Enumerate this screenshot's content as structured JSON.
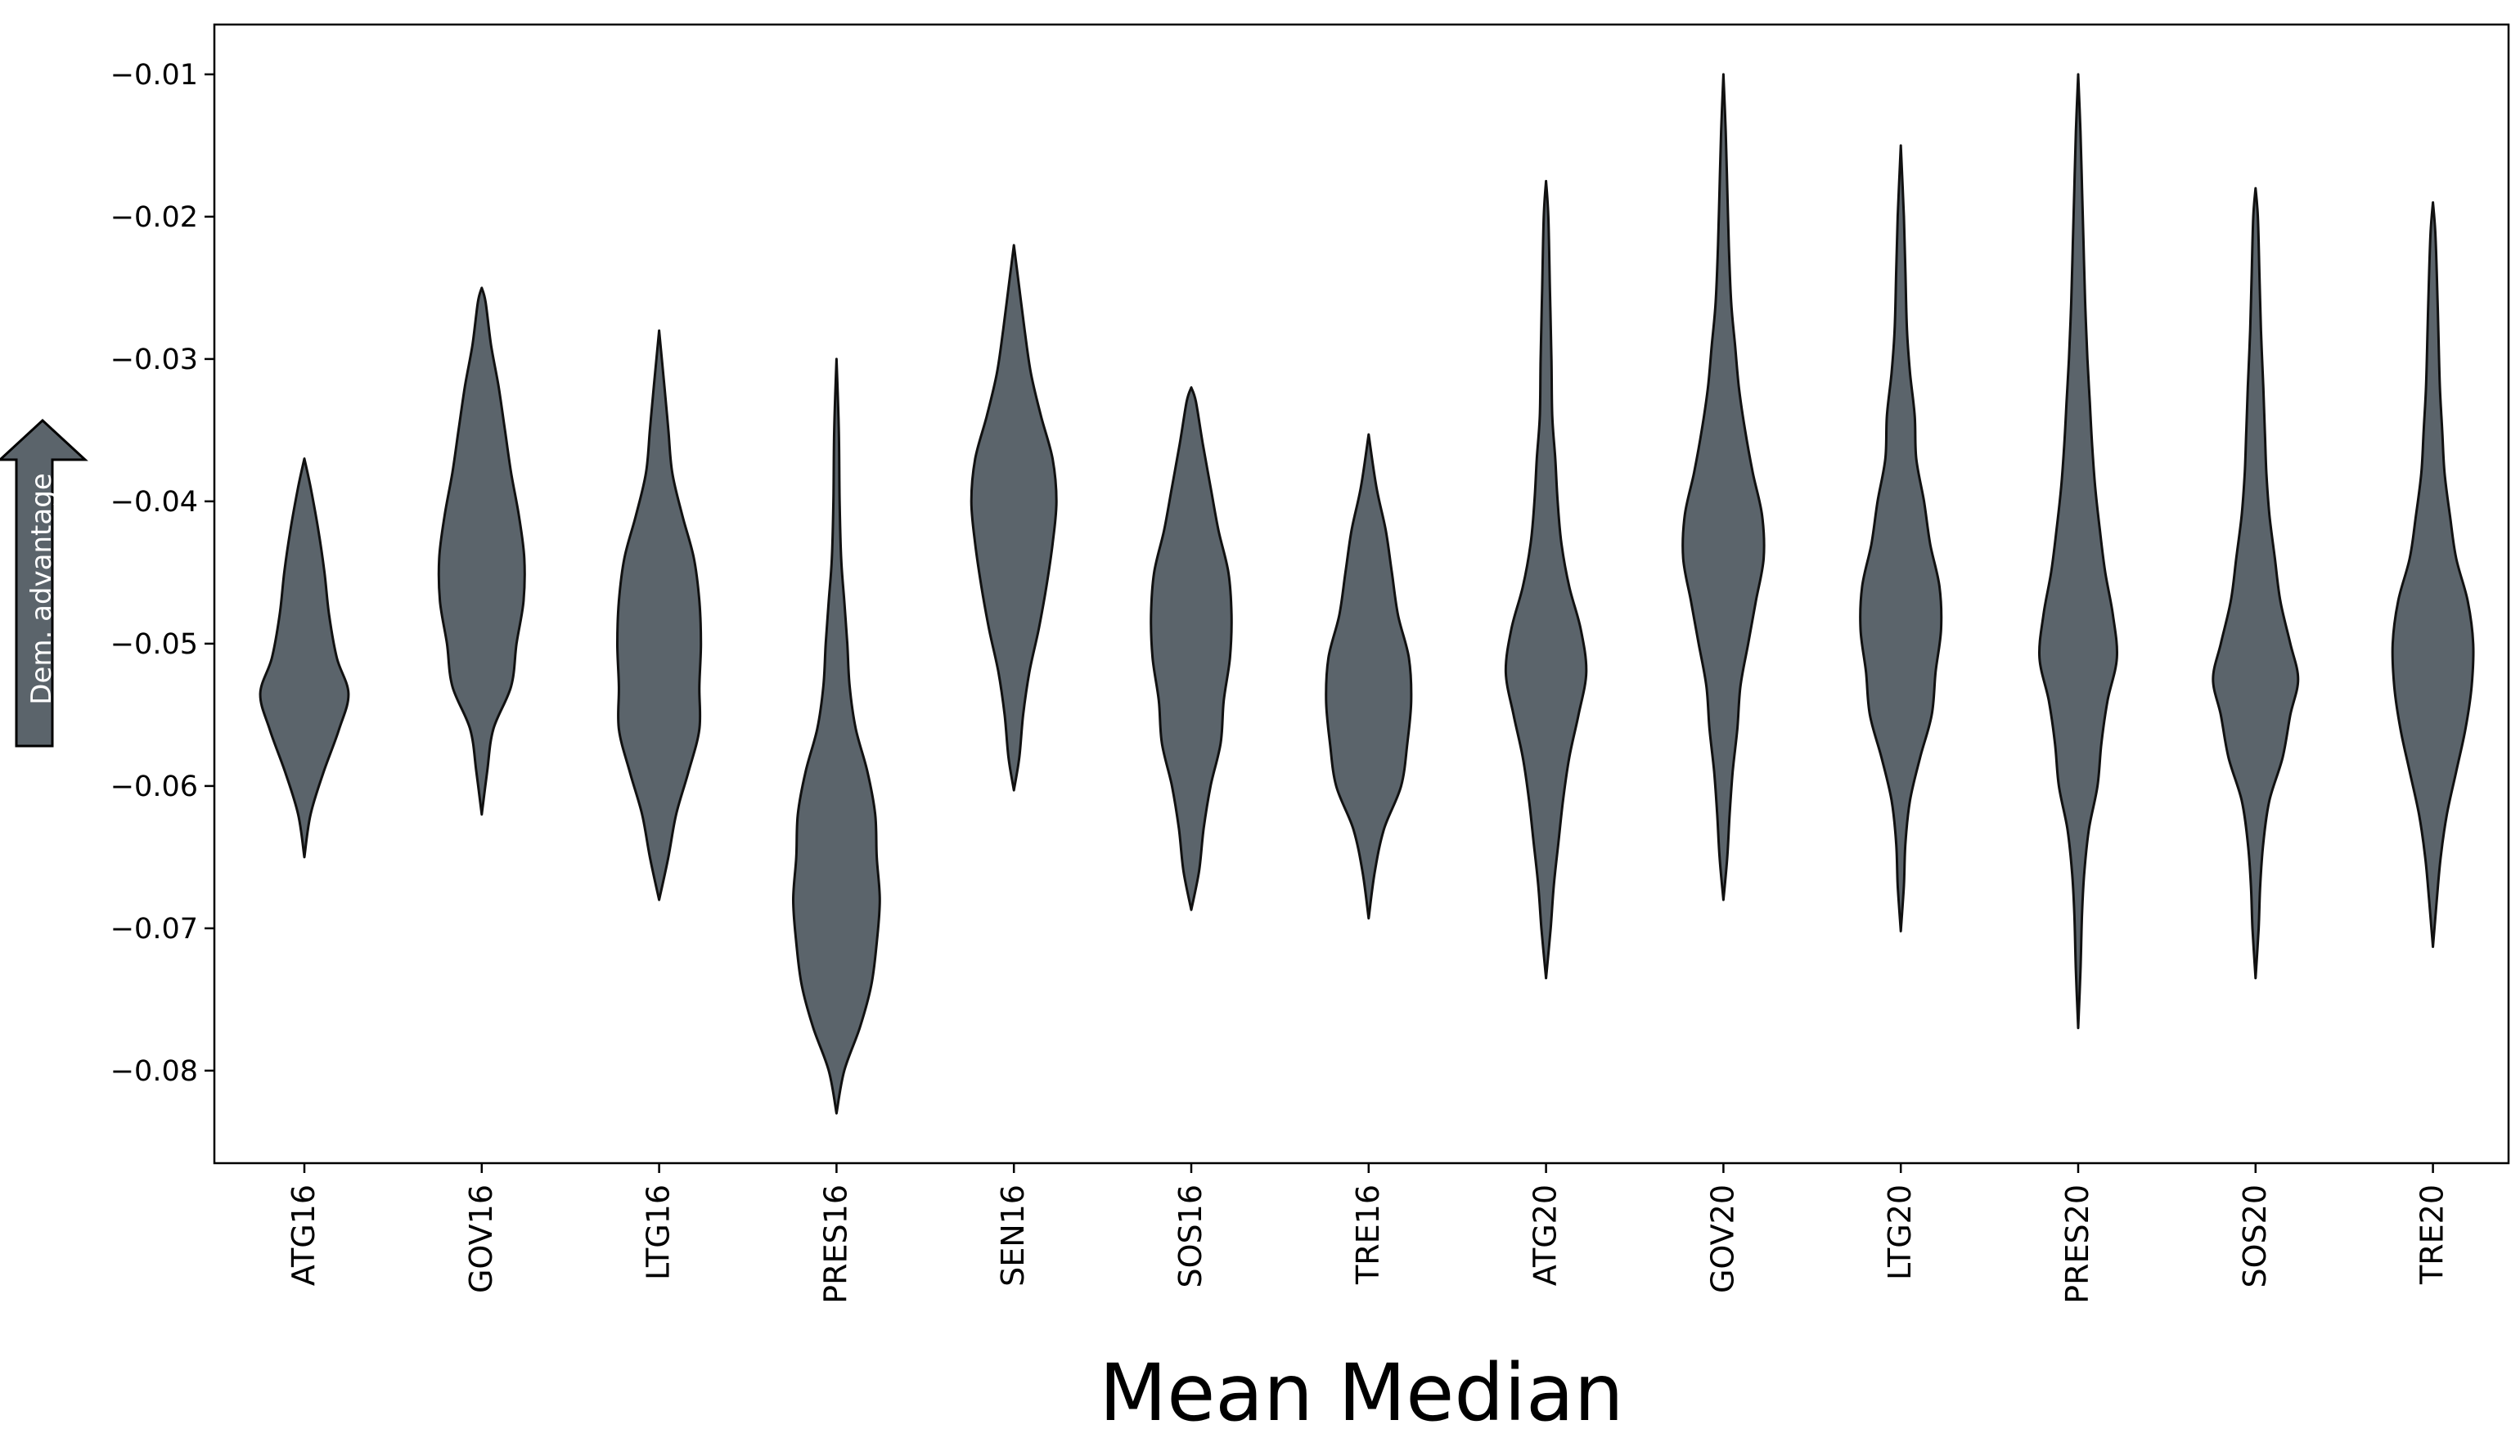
{
  "chart_data": {
    "type": "violin",
    "title": "",
    "xlabel": "Mean Median",
    "ylabel": "",
    "ylim": [
      -0.0865,
      -0.0065
    ],
    "grid": false,
    "annotation": {
      "text": "Dem. advantage",
      "direction": "up"
    },
    "colors": {
      "fill": "#5b646b",
      "edge": "#111111",
      "arrow_fill": "#5b646b"
    },
    "yticks": [
      {
        "value": -0.08,
        "label": "−0.08"
      },
      {
        "value": -0.07,
        "label": "−0.07"
      },
      {
        "value": -0.06,
        "label": "−0.06"
      },
      {
        "value": -0.05,
        "label": "−0.05"
      },
      {
        "value": -0.04,
        "label": "−0.04"
      },
      {
        "value": -0.03,
        "label": "−0.03"
      },
      {
        "value": -0.02,
        "label": "−0.02"
      },
      {
        "value": -0.01,
        "label": "−0.01"
      }
    ],
    "categories": [
      "ATG16",
      "GOV16",
      "LTG16",
      "PRES16",
      "SEN16",
      "SOS16",
      "TRE16",
      "ATG20",
      "GOV20",
      "LTG20",
      "PRES20",
      "SOS20",
      "TRE20"
    ],
    "violins": [
      {
        "category": "ATG16",
        "min": -0.065,
        "max": -0.037,
        "profile": [
          [
            -0.065,
            0.0
          ],
          [
            -0.062,
            0.08
          ],
          [
            -0.059,
            0.25
          ],
          [
            -0.056,
            0.45
          ],
          [
            -0.0535,
            0.57
          ],
          [
            -0.051,
            0.42
          ],
          [
            -0.048,
            0.32
          ],
          [
            -0.045,
            0.26
          ],
          [
            -0.042,
            0.18
          ],
          [
            -0.039,
            0.08
          ],
          [
            -0.037,
            0.0
          ]
        ]
      },
      {
        "category": "GOV16",
        "min": -0.062,
        "max": -0.025,
        "profile": [
          [
            -0.062,
            0.0
          ],
          [
            -0.059,
            0.07
          ],
          [
            -0.056,
            0.15
          ],
          [
            -0.053,
            0.38
          ],
          [
            -0.05,
            0.45
          ],
          [
            -0.047,
            0.54
          ],
          [
            -0.044,
            0.55
          ],
          [
            -0.041,
            0.48
          ],
          [
            -0.038,
            0.38
          ],
          [
            -0.035,
            0.3
          ],
          [
            -0.032,
            0.22
          ],
          [
            -0.029,
            0.12
          ],
          [
            -0.026,
            0.05
          ],
          [
            -0.025,
            0.0
          ]
        ]
      },
      {
        "category": "LTG16",
        "min": -0.068,
        "max": -0.028,
        "profile": [
          [
            -0.068,
            0.0
          ],
          [
            -0.065,
            0.12
          ],
          [
            -0.062,
            0.22
          ],
          [
            -0.059,
            0.38
          ],
          [
            -0.056,
            0.52
          ],
          [
            -0.053,
            0.52
          ],
          [
            -0.05,
            0.54
          ],
          [
            -0.047,
            0.52
          ],
          [
            -0.044,
            0.45
          ],
          [
            -0.041,
            0.3
          ],
          [
            -0.038,
            0.17
          ],
          [
            -0.035,
            0.12
          ],
          [
            -0.032,
            0.07
          ],
          [
            -0.028,
            0.0
          ]
        ]
      },
      {
        "category": "PRES16",
        "min": -0.083,
        "max": -0.03,
        "profile": [
          [
            -0.083,
            0.0
          ],
          [
            -0.08,
            0.1
          ],
          [
            -0.077,
            0.3
          ],
          [
            -0.074,
            0.45
          ],
          [
            -0.071,
            0.52
          ],
          [
            -0.068,
            0.56
          ],
          [
            -0.065,
            0.52
          ],
          [
            -0.062,
            0.5
          ],
          [
            -0.059,
            0.4
          ],
          [
            -0.056,
            0.25
          ],
          [
            -0.053,
            0.17
          ],
          [
            -0.05,
            0.14
          ],
          [
            -0.047,
            0.1
          ],
          [
            -0.044,
            0.06
          ],
          [
            -0.04,
            0.04
          ],
          [
            -0.035,
            0.03
          ],
          [
            -0.03,
            0.0
          ]
        ]
      },
      {
        "category": "SEN16",
        "min": -0.0603,
        "max": -0.022,
        "profile": [
          [
            -0.0603,
            0.0
          ],
          [
            -0.058,
            0.07
          ],
          [
            -0.055,
            0.12
          ],
          [
            -0.052,
            0.2
          ],
          [
            -0.049,
            0.32
          ],
          [
            -0.046,
            0.42
          ],
          [
            -0.043,
            0.5
          ],
          [
            -0.04,
            0.55
          ],
          [
            -0.037,
            0.5
          ],
          [
            -0.034,
            0.35
          ],
          [
            -0.031,
            0.22
          ],
          [
            -0.028,
            0.14
          ],
          [
            -0.025,
            0.07
          ],
          [
            -0.022,
            0.0
          ]
        ]
      },
      {
        "category": "SOS16",
        "min": -0.0687,
        "max": -0.032,
        "profile": [
          [
            -0.0687,
            0.0
          ],
          [
            -0.066,
            0.1
          ],
          [
            -0.063,
            0.16
          ],
          [
            -0.06,
            0.25
          ],
          [
            -0.057,
            0.38
          ],
          [
            -0.054,
            0.42
          ],
          [
            -0.051,
            0.5
          ],
          [
            -0.048,
            0.52
          ],
          [
            -0.045,
            0.48
          ],
          [
            -0.042,
            0.35
          ],
          [
            -0.039,
            0.25
          ],
          [
            -0.036,
            0.15
          ],
          [
            -0.033,
            0.06
          ],
          [
            -0.032,
            0.0
          ]
        ]
      },
      {
        "category": "TRE16",
        "min": -0.0693,
        "max": -0.0353,
        "profile": [
          [
            -0.0693,
            0.0
          ],
          [
            -0.066,
            0.08
          ],
          [
            -0.063,
            0.2
          ],
          [
            -0.06,
            0.42
          ],
          [
            -0.057,
            0.5
          ],
          [
            -0.054,
            0.55
          ],
          [
            -0.051,
            0.52
          ],
          [
            -0.048,
            0.38
          ],
          [
            -0.045,
            0.3
          ],
          [
            -0.042,
            0.22
          ],
          [
            -0.039,
            0.1
          ],
          [
            -0.0353,
            0.0
          ]
        ]
      },
      {
        "category": "ATG20",
        "min": -0.0735,
        "max": -0.0175,
        "profile": [
          [
            -0.0735,
            0.0
          ],
          [
            -0.07,
            0.06
          ],
          [
            -0.067,
            0.1
          ],
          [
            -0.064,
            0.16
          ],
          [
            -0.061,
            0.22
          ],
          [
            -0.058,
            0.3
          ],
          [
            -0.055,
            0.42
          ],
          [
            -0.052,
            0.52
          ],
          [
            -0.049,
            0.45
          ],
          [
            -0.046,
            0.3
          ],
          [
            -0.043,
            0.2
          ],
          [
            -0.04,
            0.15
          ],
          [
            -0.037,
            0.12
          ],
          [
            -0.034,
            0.08
          ],
          [
            -0.03,
            0.07
          ],
          [
            -0.025,
            0.05
          ],
          [
            -0.02,
            0.03
          ],
          [
            -0.0175,
            0.0
          ]
        ]
      },
      {
        "category": "GOV20",
        "min": -0.068,
        "max": -0.01,
        "profile": [
          [
            -0.068,
            0.0
          ],
          [
            -0.065,
            0.05
          ],
          [
            -0.062,
            0.08
          ],
          [
            -0.059,
            0.12
          ],
          [
            -0.056,
            0.18
          ],
          [
            -0.053,
            0.22
          ],
          [
            -0.05,
            0.32
          ],
          [
            -0.047,
            0.42
          ],
          [
            -0.044,
            0.52
          ],
          [
            -0.041,
            0.5
          ],
          [
            -0.038,
            0.38
          ],
          [
            -0.035,
            0.28
          ],
          [
            -0.032,
            0.2
          ],
          [
            -0.029,
            0.15
          ],
          [
            -0.026,
            0.1
          ],
          [
            -0.022,
            0.07
          ],
          [
            -0.018,
            0.05
          ],
          [
            -0.014,
            0.03
          ],
          [
            -0.01,
            0.0
          ]
        ]
      },
      {
        "category": "LTG20",
        "min": -0.0702,
        "max": -0.015,
        "profile": [
          [
            -0.0702,
            0.0
          ],
          [
            -0.067,
            0.04
          ],
          [
            -0.064,
            0.06
          ],
          [
            -0.061,
            0.12
          ],
          [
            -0.058,
            0.25
          ],
          [
            -0.055,
            0.4
          ],
          [
            -0.052,
            0.45
          ],
          [
            -0.049,
            0.52
          ],
          [
            -0.046,
            0.5
          ],
          [
            -0.043,
            0.38
          ],
          [
            -0.04,
            0.3
          ],
          [
            -0.037,
            0.2
          ],
          [
            -0.034,
            0.18
          ],
          [
            -0.031,
            0.12
          ],
          [
            -0.028,
            0.08
          ],
          [
            -0.024,
            0.06
          ],
          [
            -0.02,
            0.04
          ],
          [
            -0.015,
            0.0
          ]
        ]
      },
      {
        "category": "PRES20",
        "min": -0.077,
        "max": -0.01,
        "profile": [
          [
            -0.077,
            0.0
          ],
          [
            -0.073,
            0.03
          ],
          [
            -0.069,
            0.05
          ],
          [
            -0.066,
            0.08
          ],
          [
            -0.063,
            0.14
          ],
          [
            -0.06,
            0.25
          ],
          [
            -0.057,
            0.3
          ],
          [
            -0.054,
            0.38
          ],
          [
            -0.051,
            0.5
          ],
          [
            -0.048,
            0.45
          ],
          [
            -0.045,
            0.35
          ],
          [
            -0.042,
            0.28
          ],
          [
            -0.039,
            0.22
          ],
          [
            -0.036,
            0.18
          ],
          [
            -0.033,
            0.15
          ],
          [
            -0.03,
            0.12
          ],
          [
            -0.026,
            0.09
          ],
          [
            -0.022,
            0.07
          ],
          [
            -0.018,
            0.05
          ],
          [
            -0.014,
            0.03
          ],
          [
            -0.01,
            0.0
          ]
        ]
      },
      {
        "category": "SOS20",
        "min": -0.0735,
        "max": -0.018,
        "profile": [
          [
            -0.0735,
            0.0
          ],
          [
            -0.07,
            0.04
          ],
          [
            -0.067,
            0.06
          ],
          [
            -0.064,
            0.1
          ],
          [
            -0.061,
            0.18
          ],
          [
            -0.058,
            0.35
          ],
          [
            -0.055,
            0.45
          ],
          [
            -0.0525,
            0.55
          ],
          [
            -0.05,
            0.45
          ],
          [
            -0.047,
            0.32
          ],
          [
            -0.044,
            0.25
          ],
          [
            -0.041,
            0.18
          ],
          [
            -0.038,
            0.14
          ],
          [
            -0.035,
            0.12
          ],
          [
            -0.032,
            0.1
          ],
          [
            -0.028,
            0.07
          ],
          [
            -0.024,
            0.05
          ],
          [
            -0.02,
            0.03
          ],
          [
            -0.018,
            0.0
          ]
        ]
      },
      {
        "category": "TRE20",
        "min": -0.0713,
        "max": -0.019,
        "profile": [
          [
            -0.0713,
            0.0
          ],
          [
            -0.068,
            0.05
          ],
          [
            -0.065,
            0.1
          ],
          [
            -0.062,
            0.18
          ],
          [
            -0.059,
            0.3
          ],
          [
            -0.056,
            0.42
          ],
          [
            -0.053,
            0.5
          ],
          [
            -0.05,
            0.52
          ],
          [
            -0.047,
            0.45
          ],
          [
            -0.044,
            0.3
          ],
          [
            -0.041,
            0.22
          ],
          [
            -0.038,
            0.15
          ],
          [
            -0.035,
            0.12
          ],
          [
            -0.032,
            0.09
          ],
          [
            -0.028,
            0.07
          ],
          [
            -0.024,
            0.05
          ],
          [
            -0.021,
            0.03
          ],
          [
            -0.019,
            0.0
          ]
        ]
      }
    ]
  }
}
